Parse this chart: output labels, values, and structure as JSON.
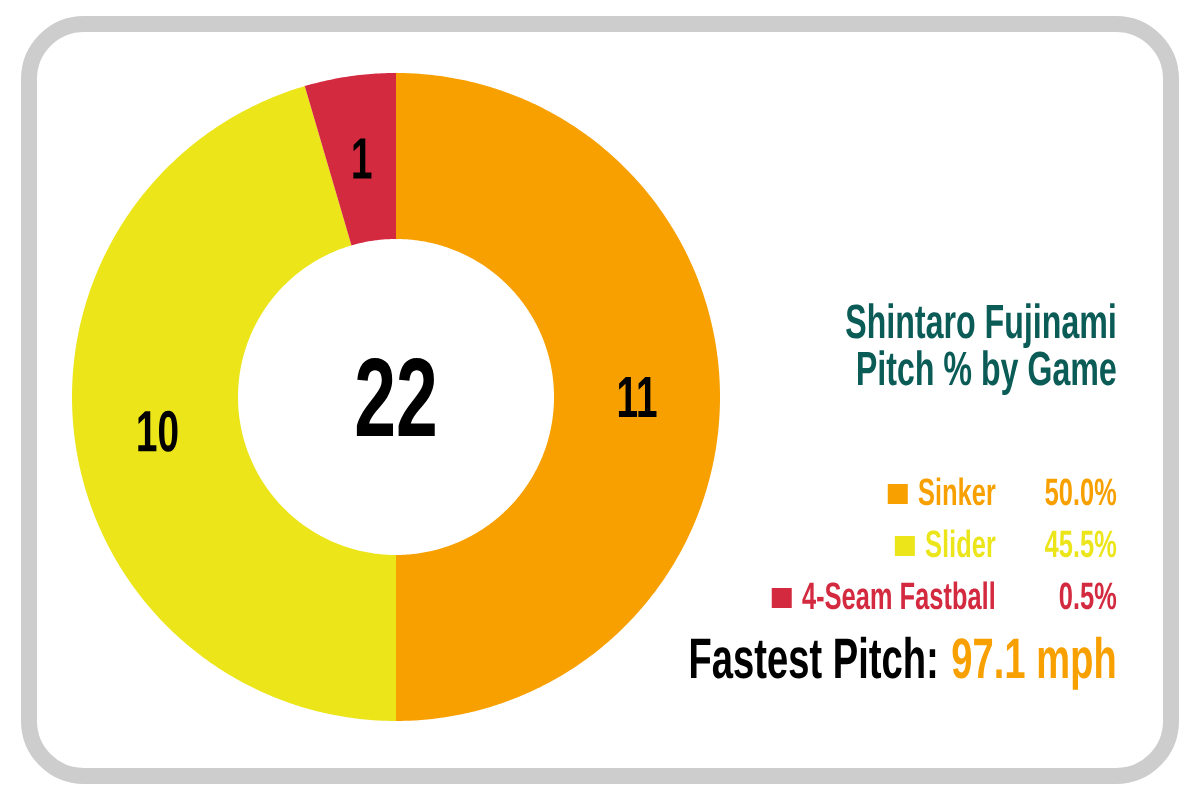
{
  "chart_data": {
    "type": "donut",
    "title": "Shintaro Fujinami",
    "subtitle": "Pitch % by Game",
    "categories": [
      "Sinker",
      "Slider",
      "4-Seam Fastball"
    ],
    "values": [
      11,
      10,
      1
    ],
    "colors": [
      "#f7a000",
      "#ebe51a",
      "#d42a40"
    ],
    "data_labels": true,
    "legend": "right",
    "annotations": [
      "22",
      "50.0%",
      "45.5%",
      "0.5%",
      "Fastest Pitch:",
      "97.1 mph"
    ]
  }
}
